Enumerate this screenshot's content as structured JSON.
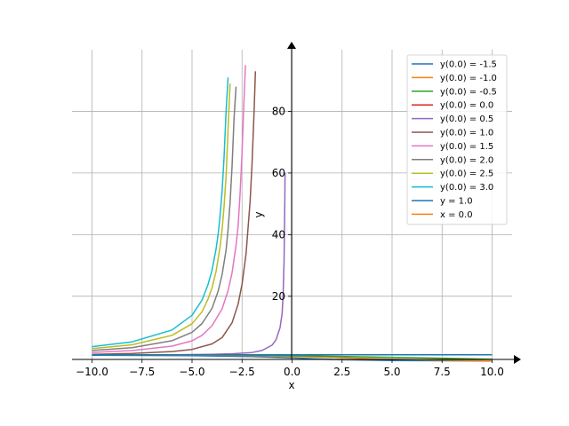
{
  "chart_data": {
    "type": "line",
    "xlabel": "x",
    "ylabel": "y",
    "xlim": [
      -11.0,
      11.0
    ],
    "ylim": [
      -0.5,
      100.0
    ],
    "grid": true,
    "legend_placement": "top-right",
    "x_ticks": [
      {
        "value": -10.0,
        "label": "−10.0"
      },
      {
        "value": -7.5,
        "label": "−7.5"
      },
      {
        "value": -5.0,
        "label": "−5.0"
      },
      {
        "value": -2.5,
        "label": "−2.5"
      },
      {
        "value": 0.0,
        "label": "0.0"
      },
      {
        "value": 2.5,
        "label": "2.5"
      },
      {
        "value": 5.0,
        "label": "5.0"
      },
      {
        "value": 7.5,
        "label": "7.5"
      },
      {
        "value": 10.0,
        "label": "10.0"
      }
    ],
    "y_ticks": [
      {
        "value": 20,
        "label": "20"
      },
      {
        "value": 40,
        "label": "40"
      },
      {
        "value": 60,
        "label": "60"
      },
      {
        "value": 80,
        "label": "80"
      }
    ],
    "series": [
      {
        "name": "y(0.0) = -1.5",
        "color": "#1f77b4",
        "points": [
          [
            -10.0,
            0.87
          ],
          [
            -5.0,
            0.71
          ],
          [
            -2.0,
            0.43
          ],
          [
            0.0,
            0.0
          ],
          [
            2.0,
            -0.52
          ],
          [
            5.0,
            -0.88
          ],
          [
            10.0,
            -0.99
          ]
        ]
      },
      {
        "name": "y(0.0) = -1.0",
        "color": "#ff7f0e",
        "points": [
          [
            -10.0,
            0.99
          ],
          [
            -5.0,
            0.93
          ],
          [
            -2.0,
            0.76
          ],
          [
            0.0,
            0.5
          ],
          [
            2.0,
            0.12
          ],
          [
            5.0,
            -0.45
          ],
          [
            10.0,
            -0.95
          ]
        ]
      },
      {
        "name": "y(0.0) = -0.5",
        "color": "#2ca02c",
        "points": [
          [
            -10.0,
            1.0
          ],
          [
            -5.0,
            0.98
          ],
          [
            -2.0,
            0.9
          ],
          [
            0.0,
            0.75
          ],
          [
            2.0,
            0.52
          ],
          [
            5.0,
            0.18
          ],
          [
            10.0,
            -0.4
          ]
        ]
      },
      {
        "name": "y(0.0) = 0.0",
        "color": "#d62728",
        "points": [
          [
            -10.0,
            1.0
          ],
          [
            -5.0,
            1.0
          ],
          [
            0.0,
            1.0
          ],
          [
            5.0,
            1.0
          ],
          [
            10.0,
            1.0
          ]
        ]
      },
      {
        "name": "y(0.0) = 0.5",
        "color": "#9467bd",
        "points": [
          [
            -10.0,
            1.01
          ],
          [
            -6.0,
            1.04
          ],
          [
            -4.0,
            1.16
          ],
          [
            -3.0,
            1.33
          ],
          [
            -2.0,
            1.76
          ],
          [
            -1.5,
            2.42
          ],
          [
            -1.0,
            4.13
          ],
          [
            -0.8,
            5.88
          ],
          [
            -0.6,
            9.8
          ],
          [
            -0.5,
            14.41
          ],
          [
            -0.45,
            20.05
          ],
          [
            -0.4,
            31.37
          ],
          [
            -0.38,
            40.1
          ],
          [
            -0.36,
            52.0
          ],
          [
            -0.35,
            60.0
          ]
        ]
      },
      {
        "name": "y(0.0) = 1.0",
        "color": "#8c564b",
        "points": [
          [
            -10.0,
            1.15
          ],
          [
            -8.0,
            1.44
          ],
          [
            -6.0,
            2.06
          ],
          [
            -5.0,
            2.74
          ],
          [
            -4.0,
            4.55
          ],
          [
            -3.5,
            6.58
          ],
          [
            -3.0,
            11.4
          ],
          [
            -2.7,
            17.4
          ],
          [
            -2.5,
            24.0
          ],
          [
            -2.3,
            33.9
          ],
          [
            -2.1,
            50.7
          ],
          [
            -2.0,
            63.0
          ],
          [
            -1.9,
            80.0
          ],
          [
            -1.83,
            93.0
          ]
        ]
      },
      {
        "name": "y(0.0) = 1.5",
        "color": "#e377c2",
        "points": [
          [
            -10.0,
            1.78
          ],
          [
            -8.0,
            2.37
          ],
          [
            -6.0,
            3.83
          ],
          [
            -5.0,
            5.54
          ],
          [
            -4.5,
            7.33
          ],
          [
            -4.0,
            10.43
          ],
          [
            -3.5,
            15.9
          ],
          [
            -3.2,
            21.8
          ],
          [
            -3.0,
            27.6
          ],
          [
            -2.8,
            36.5
          ],
          [
            -2.7,
            42.7
          ],
          [
            -2.6,
            53.0
          ],
          [
            -2.5,
            67.0
          ],
          [
            -2.4,
            84.0
          ],
          [
            -2.33,
            95.0
          ]
        ]
      },
      {
        "name": "y(0.0) = 2.0",
        "color": "#7f7f7f",
        "points": [
          [
            -10.0,
            2.4
          ],
          [
            -8.0,
            3.31
          ],
          [
            -6.0,
            5.58
          ],
          [
            -5.0,
            8.3
          ],
          [
            -4.5,
            11.15
          ],
          [
            -4.0,
            16.1
          ],
          [
            -3.7,
            21.6
          ],
          [
            -3.5,
            27.0
          ],
          [
            -3.3,
            35.0
          ],
          [
            -3.2,
            41.5
          ],
          [
            -3.1,
            50.5
          ],
          [
            -3.0,
            62.0
          ],
          [
            -2.9,
            78.0
          ],
          [
            -2.8,
            88.0
          ]
        ]
      },
      {
        "name": "y(0.0) = 2.5",
        "color": "#bcbd22",
        "points": [
          [
            -10.0,
            3.02
          ],
          [
            -8.0,
            4.25
          ],
          [
            -6.0,
            7.33
          ],
          [
            -5.0,
            11.07
          ],
          [
            -4.5,
            14.97
          ],
          [
            -4.2,
            19.1
          ],
          [
            -4.0,
            22.8
          ],
          [
            -3.8,
            28.0
          ],
          [
            -3.6,
            36.0
          ],
          [
            -3.5,
            41.5
          ],
          [
            -3.4,
            49.0
          ],
          [
            -3.3,
            59.0
          ],
          [
            -3.2,
            74.0
          ],
          [
            -3.1,
            89.0
          ]
        ]
      },
      {
        "name": "y(0.0) = 3.0",
        "color": "#17becf",
        "points": [
          [
            -10.0,
            3.65
          ],
          [
            -8.0,
            5.19
          ],
          [
            -6.0,
            9.07
          ],
          [
            -5.0,
            13.84
          ],
          [
            -4.5,
            18.78
          ],
          [
            -4.2,
            23.8
          ],
          [
            -4.0,
            28.5
          ],
          [
            -3.8,
            35.3
          ],
          [
            -3.7,
            40.0
          ],
          [
            -3.6,
            46.0
          ],
          [
            -3.5,
            54.0
          ],
          [
            -3.4,
            65.0
          ],
          [
            -3.3,
            80.0
          ],
          [
            -3.2,
            91.0
          ]
        ]
      },
      {
        "name": "y = 1.0",
        "color": "#1f77b4",
        "points": [
          [
            -10.0,
            1.0
          ],
          [
            10.0,
            1.0
          ]
        ]
      },
      {
        "name": "x = 0.0",
        "color": "#ff7f0e",
        "points": [
          [
            0.0,
            -0.3
          ],
          [
            0.0,
            0.3
          ]
        ]
      }
    ]
  }
}
